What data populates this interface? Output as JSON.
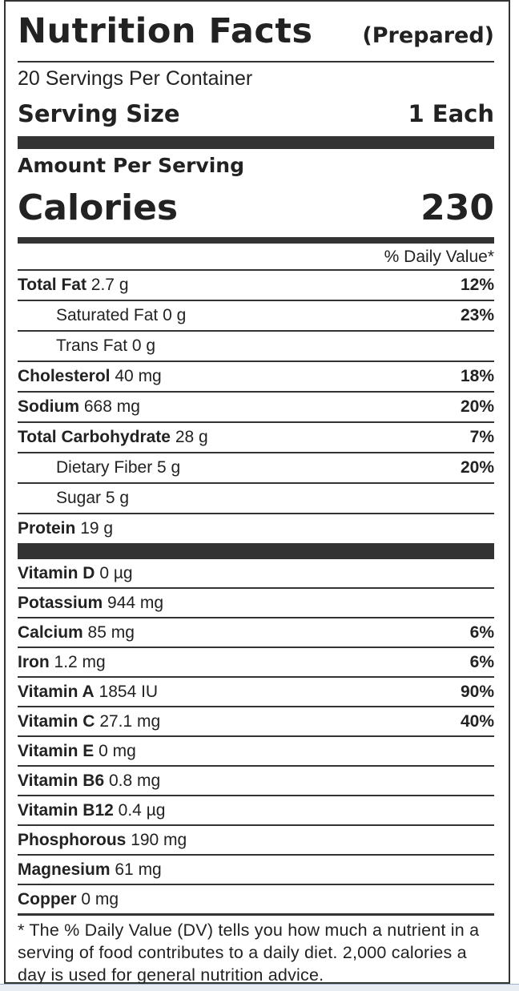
{
  "title": "Nutrition Facts",
  "subtitle": "(Prepared)",
  "servings_per_container": "20 Servings Per Container",
  "serving_size_label": "Serving Size",
  "serving_size_value": "1 Each",
  "amount_per_serving": "Amount Per Serving",
  "calories_label": "Calories",
  "calories_value": "230",
  "dv_header": "% Daily Value*",
  "nutrients": [
    {
      "name": "Total Fat",
      "amount": "2.7 g",
      "dv": "12%"
    },
    {
      "name": "Saturated Fat",
      "amount": "0 g",
      "dv": "23%"
    },
    {
      "name": "Trans Fat",
      "amount": "0 g",
      "dv": ""
    },
    {
      "name": "Cholesterol",
      "amount": "40 mg",
      "dv": "18%"
    },
    {
      "name": "Sodium",
      "amount": "668 mg",
      "dv": "20%"
    },
    {
      "name": "Total Carbohydrate",
      "amount": "28 g",
      "dv": "7%"
    },
    {
      "name": "Dietary Fiber",
      "amount": "5 g",
      "dv": "20%"
    },
    {
      "name": "Sugar",
      "amount": "5 g",
      "dv": ""
    },
    {
      "name": "Protein",
      "amount": "19 g",
      "dv": ""
    }
  ],
  "vitamins": [
    {
      "name": "Vitamin D",
      "amount": "0 µg",
      "dv": ""
    },
    {
      "name": "Potassium",
      "amount": "944 mg",
      "dv": ""
    },
    {
      "name": "Calcium",
      "amount": "85 mg",
      "dv": "6%"
    },
    {
      "name": "Iron",
      "amount": "1.2 mg",
      "dv": "6%"
    },
    {
      "name": "Vitamin A",
      "amount": "1854 IU",
      "dv": "90%"
    },
    {
      "name": "Vitamin C",
      "amount": "27.1 mg",
      "dv": "40%"
    },
    {
      "name": "Vitamin E",
      "amount": "0 mg",
      "dv": ""
    },
    {
      "name": "Vitamin B6",
      "amount": "0.8 mg",
      "dv": ""
    },
    {
      "name": "Vitamin B12",
      "amount": "0.4 µg",
      "dv": ""
    },
    {
      "name": "Phosphorous",
      "amount": "190 mg",
      "dv": ""
    },
    {
      "name": "Magnesium",
      "amount": "61 mg",
      "dv": ""
    },
    {
      "name": "Copper",
      "amount": "0 mg",
      "dv": ""
    }
  ],
  "footnote": "* The % Daily Value (DV) tells you how much a nutrient in a serving of food contributes to a daily diet. 2,000 calories a day is used for general nutrition advice."
}
